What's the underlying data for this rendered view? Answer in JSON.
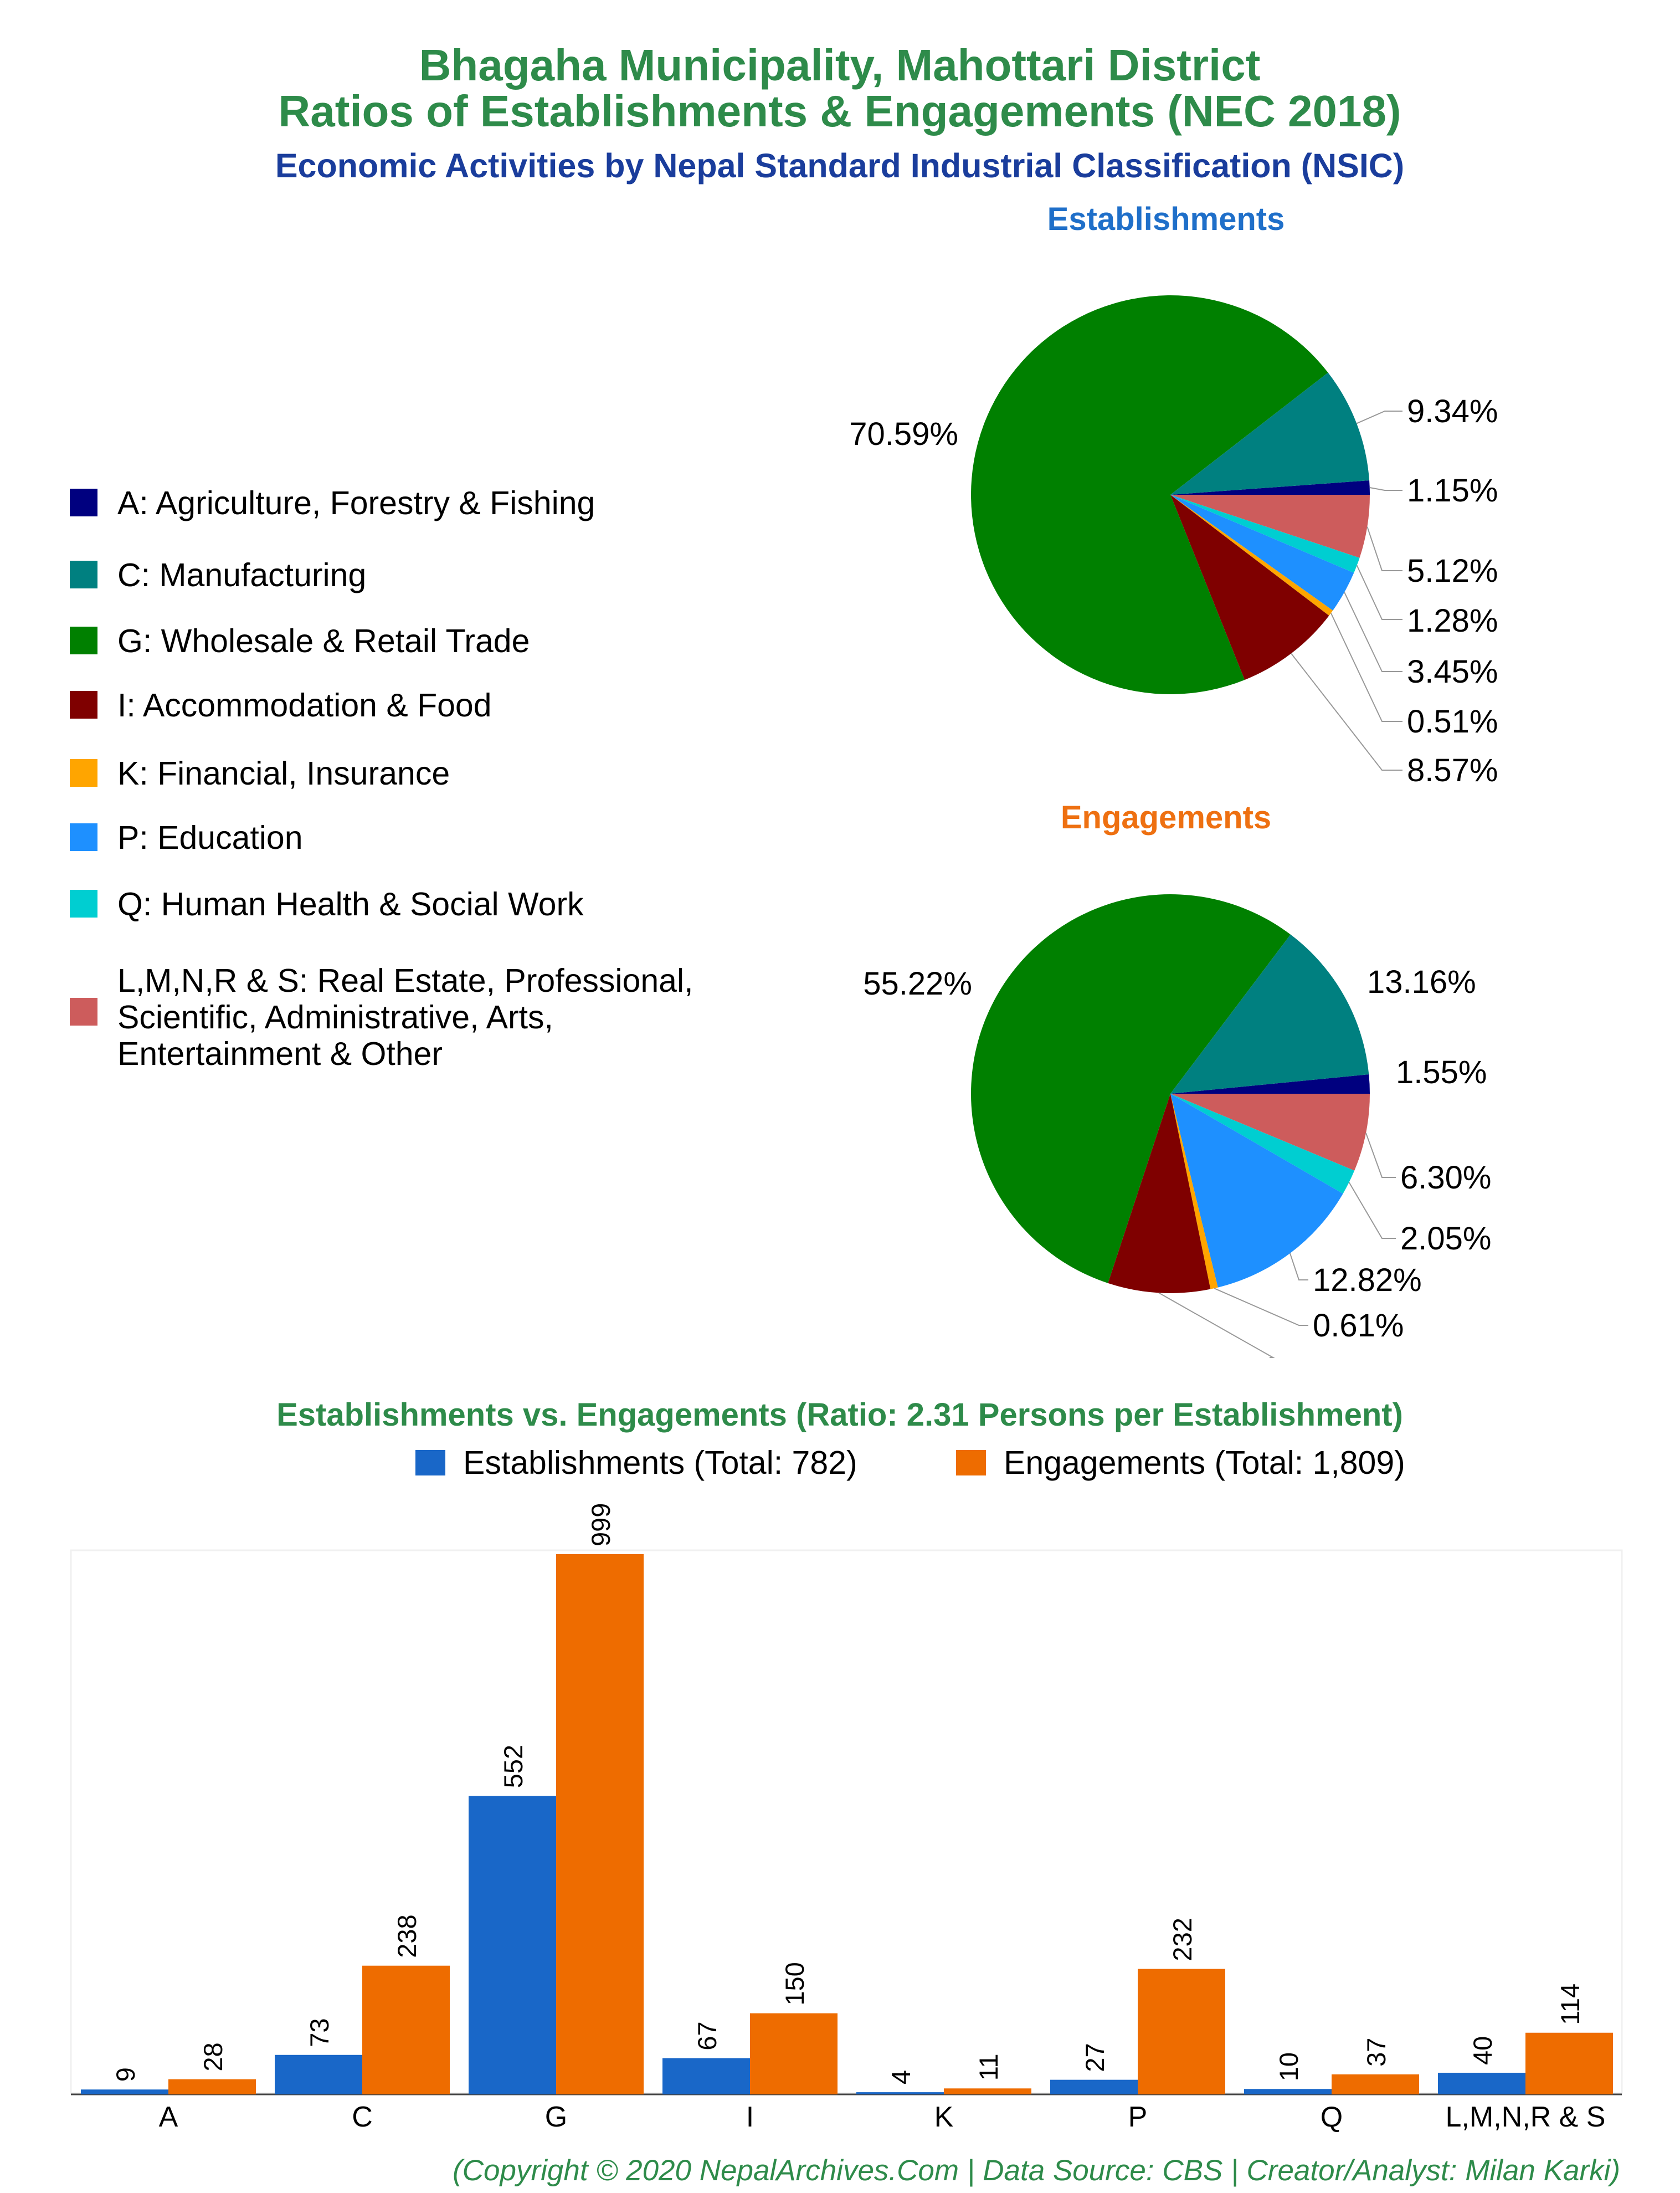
{
  "header": {
    "title_line1": "Bhagaha Municipality, Mahottari District",
    "title_line2": "Ratios of Establishments & Engagements (NEC 2018)",
    "subtitle": "Economic Activities by Nepal Standard Industrial Classification (NSIC)"
  },
  "colors": {
    "title": "#2e8b4a",
    "subtitle": "#1a3d9c",
    "establishments_title": "#1f6fc9",
    "engagements_title": "#ee7011",
    "bar_establishments": "#1967c8",
    "bar_engagements": "#ee6c00",
    "footer": "#2e8b4a"
  },
  "legend": {
    "items": [
      {
        "code": "A",
        "label": "A: Agriculture, Forestry & Fishing",
        "color": "#00007f"
      },
      {
        "code": "C",
        "label": "C: Manufacturing",
        "color": "#008080"
      },
      {
        "code": "G",
        "label": "G: Wholesale & Retail Trade",
        "color": "#008000"
      },
      {
        "code": "I",
        "label": "I: Accommodation & Food",
        "color": "#7f0000"
      },
      {
        "code": "K",
        "label": "K: Financial, Insurance",
        "color": "#ffa500"
      },
      {
        "code": "P",
        "label": "P: Education",
        "color": "#1e90ff"
      },
      {
        "code": "Q",
        "label": "Q: Human Health & Social Work",
        "color": "#00ced1"
      },
      {
        "code": "LMNRS",
        "label": "L,M,N,R & S: Real Estate, Professional,\nScientific, Administrative, Arts,\nEntertainment & Other",
        "color": "#cd5c5c"
      }
    ]
  },
  "chart_data": [
    {
      "type": "pie",
      "title": "Establishments",
      "labels": [
        "A",
        "C",
        "G",
        "I",
        "K",
        "P",
        "Q",
        "L,M,N,R & S"
      ],
      "values": [
        1.15,
        9.34,
        70.59,
        8.57,
        0.51,
        3.45,
        1.28,
        5.12
      ],
      "value_labels": [
        "1.15%",
        "9.34%",
        "70.59%",
        "8.57%",
        "0.51%",
        "3.45%",
        "1.28%",
        "5.12%"
      ]
    },
    {
      "type": "pie",
      "title": "Engagements",
      "labels": [
        "A",
        "C",
        "G",
        "I",
        "K",
        "P",
        "Q",
        "L,M,N,R & S"
      ],
      "values": [
        1.55,
        13.16,
        55.22,
        8.29,
        0.61,
        12.82,
        2.05,
        6.3
      ],
      "value_labels": [
        "1.55%",
        "13.16%",
        "55.22%",
        "",
        "0.61%",
        "12.82%",
        "2.05%",
        "6.30%"
      ]
    },
    {
      "type": "bar",
      "title": "Establishments vs. Engagements (Ratio: 2.31 Persons per Establishment)",
      "categories": [
        "A",
        "C",
        "G",
        "I",
        "K",
        "P",
        "Q",
        "L,M,N,R & S"
      ],
      "series": [
        {
          "name": "Establishments (Total: 782)",
          "values": [
            9,
            73,
            552,
            67,
            4,
            27,
            10,
            40
          ]
        },
        {
          "name": "Engagements (Total: 1,809)",
          "values": [
            28,
            238,
            999,
            150,
            11,
            232,
            37,
            114
          ]
        }
      ],
      "ylim": [
        0,
        999
      ],
      "grid": false,
      "legend_position": "top"
    }
  ],
  "footer": {
    "text": "(Copyright © 2020 NepalArchives.Com | Data Source: CBS | Creator/Analyst: Milan Karki)"
  }
}
